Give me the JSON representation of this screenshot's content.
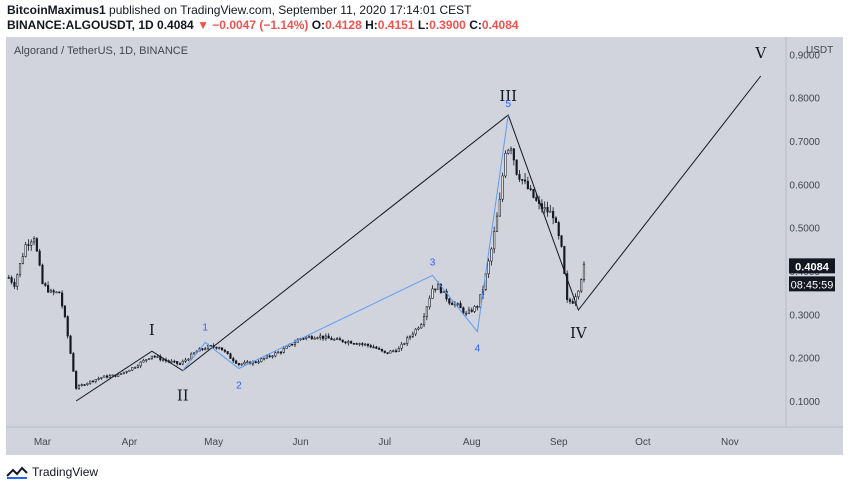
{
  "header": {
    "author": "BitcoinMaximus1",
    "published_text": "published on TradingView.com, September 11, 2020 17:14:01 CEST",
    "symbol": "BINANCE:ALGOUSDT, 1D",
    "last": "0.4084",
    "change": "−0.0047 (−1.14%)",
    "o_label": "O:",
    "o_value": "0.4128",
    "h_label": "H:",
    "h_value": "0.4151",
    "l_label": "L:",
    "l_value": "0.3900",
    "c_label": "C:",
    "c_value": "0.4084",
    "down_arrow_icon": "triangle-down-icon"
  },
  "footer": {
    "brand": "TradingView",
    "logo_icon": "tradingview-logo-icon"
  },
  "colors": {
    "plot_bg": "#d1d4dc",
    "candle": "#131722",
    "wave_main": "#131722",
    "wave_sub": "#5b9cf6",
    "sub_label": "#2962ff",
    "negative": "#ef5350",
    "badge_bg": "#131722",
    "badge_text": "#ffffff"
  },
  "chart_data": {
    "type": "candlestick",
    "title": "Algorand / TetherUS, 1D, BINANCE",
    "currency": "USDT",
    "y_ticks": [
      "0.1000",
      "0.2000",
      "0.3000",
      "0.4000",
      "0.5000",
      "0.6000",
      "0.7000",
      "0.8000",
      "0.9000"
    ],
    "y_range": [
      0.04,
      0.94
    ],
    "x_ticks": [
      "Mar",
      "Apr",
      "May",
      "Jun",
      "Jul",
      "Aug",
      "Sep",
      "Oct",
      "Nov"
    ],
    "x_range": [
      "2020-02-17",
      "2020-11-21"
    ],
    "price_badge": "0.4084",
    "countdown_badge": "08:45:59",
    "ohlc": {
      "start_date": "2020-02-18",
      "close_path": [
        [
          "2020-02-18",
          0.385
        ],
        [
          "2020-02-20",
          0.37
        ],
        [
          "2020-02-24",
          0.46
        ],
        [
          "2020-02-27",
          0.48
        ],
        [
          "2020-03-01",
          0.37
        ],
        [
          "2020-03-04",
          0.35
        ],
        [
          "2020-03-07",
          0.35
        ],
        [
          "2020-03-09",
          0.29
        ],
        [
          "2020-03-12",
          0.17
        ],
        [
          "2020-03-13",
          0.13
        ],
        [
          "2020-03-16",
          0.14
        ],
        [
          "2020-03-22",
          0.155
        ],
        [
          "2020-03-28",
          0.16
        ],
        [
          "2020-04-03",
          0.18
        ],
        [
          "2020-04-09",
          0.205
        ],
        [
          "2020-04-13",
          0.195
        ],
        [
          "2020-04-19",
          0.185
        ],
        [
          "2020-04-25",
          0.215
        ],
        [
          "2020-04-29",
          0.225
        ],
        [
          "2020-05-03",
          0.225
        ],
        [
          "2020-05-07",
          0.2
        ],
        [
          "2020-05-10",
          0.185
        ],
        [
          "2020-05-16",
          0.19
        ],
        [
          "2020-05-25",
          0.215
        ],
        [
          "2020-06-01",
          0.245
        ],
        [
          "2020-06-07",
          0.25
        ],
        [
          "2020-06-14",
          0.24
        ],
        [
          "2020-06-21",
          0.235
        ],
        [
          "2020-06-27",
          0.225
        ],
        [
          "2020-07-01",
          0.21
        ],
        [
          "2020-07-06",
          0.22
        ],
        [
          "2020-07-10",
          0.25
        ],
        [
          "2020-07-14",
          0.28
        ],
        [
          "2020-07-18",
          0.36
        ],
        [
          "2020-07-20",
          0.365
        ],
        [
          "2020-07-24",
          0.33
        ],
        [
          "2020-07-27",
          0.32
        ],
        [
          "2020-07-30",
          0.3
        ],
        [
          "2020-08-03",
          0.32
        ],
        [
          "2020-08-05",
          0.36
        ],
        [
          "2020-08-08",
          0.45
        ],
        [
          "2020-08-11",
          0.56
        ],
        [
          "2020-08-13",
          0.68
        ],
        [
          "2020-08-15",
          0.69
        ],
        [
          "2020-08-17",
          0.63
        ],
        [
          "2020-08-21",
          0.59
        ],
        [
          "2020-08-25",
          0.55
        ],
        [
          "2020-08-30",
          0.53
        ],
        [
          "2020-09-02",
          0.45
        ],
        [
          "2020-09-04",
          0.33
        ],
        [
          "2020-09-06",
          0.33
        ],
        [
          "2020-09-08",
          0.36
        ],
        [
          "2020-09-10",
          0.41
        ]
      ]
    },
    "waves_main": [
      {
        "label": "I",
        "date": "2020-04-09",
        "value": 0.215
      },
      {
        "label": "II",
        "date": "2020-04-20",
        "value": 0.17
      },
      {
        "label": "III",
        "date": "2020-08-14",
        "value": 0.76
      },
      {
        "label": "IV",
        "date": "2020-09-08",
        "value": 0.31
      },
      {
        "label": "V",
        "date": "2020-11-12",
        "value": 0.85
      }
    ],
    "waves_main_start": {
      "date": "2020-03-13",
      "value": 0.1
    },
    "waves_sub": [
      {
        "label": "1",
        "date": "2020-04-28",
        "value": 0.235
      },
      {
        "label": "2",
        "date": "2020-05-10",
        "value": 0.175
      },
      {
        "label": "3",
        "date": "2020-07-18",
        "value": 0.39
      },
      {
        "label": "4",
        "date": "2020-08-03",
        "value": 0.26
      },
      {
        "label": "5",
        "date": "2020-08-14",
        "value": 0.76
      }
    ]
  }
}
